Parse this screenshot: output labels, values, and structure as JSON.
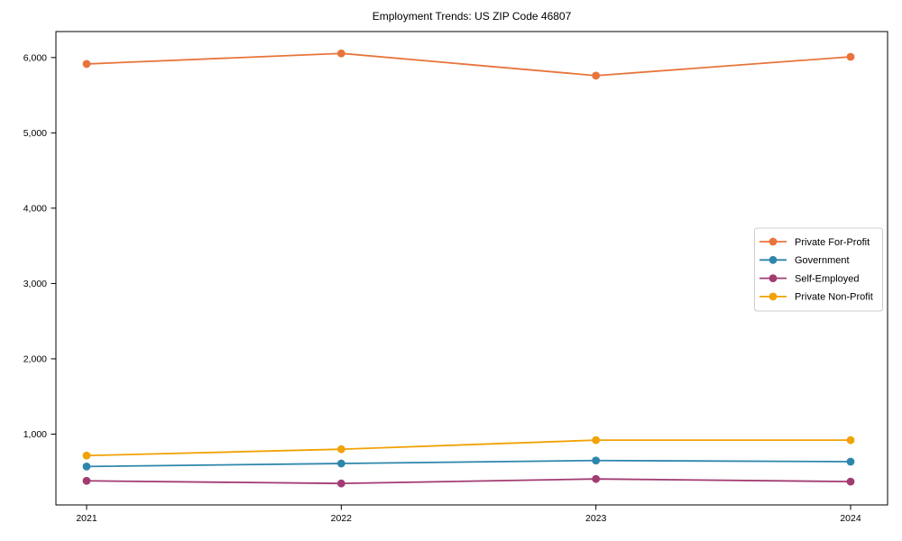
{
  "figure": {
    "title": "Employment Trends: US ZIP Code 46807"
  },
  "chart_data": {
    "type": "line",
    "title": "Employment Trends: US ZIP Code 46807",
    "categories": [
      "2021",
      "2022",
      "2023",
      "2024"
    ],
    "series": [
      {
        "name": "Private For-Profit",
        "color": "#E8743B",
        "values": [
          5915,
          6055,
          5760,
          6010
        ]
      },
      {
        "name": "Government",
        "color": "#2E86AB",
        "values": [
          570,
          610,
          650,
          635
        ]
      },
      {
        "name": "Self-Employed",
        "color": "#A23B72",
        "values": [
          380,
          345,
          405,
          370
        ]
      },
      {
        "name": "Private Non-Profit",
        "color": "#F1A208",
        "values": [
          715,
          800,
          920,
          920
        ]
      }
    ],
    "xlabel": "",
    "ylabel": "",
    "ylim": [
      60,
      6345
    ],
    "yticks": [
      1000,
      2000,
      3000,
      4000,
      5000,
      6000
    ],
    "ytick_labels": [
      "1,000",
      "2,000",
      "3,000",
      "4,000",
      "5,000",
      "6,000"
    ],
    "grid": false,
    "legend": {
      "position": "right-inside",
      "border_color": "#cccccc",
      "background": "#ffffff",
      "entries": [
        "Private For-Profit",
        "Government",
        "Self-Employed",
        "Private Non-Profit"
      ]
    },
    "spine_color": "#000000"
  }
}
